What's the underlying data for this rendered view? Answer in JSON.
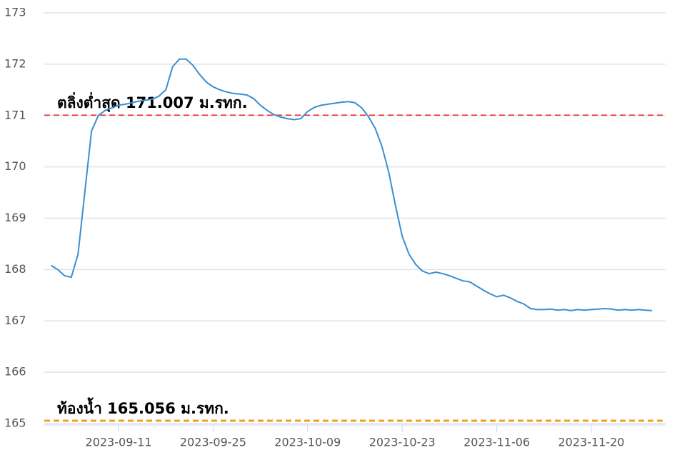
{
  "chart_data": {
    "type": "line",
    "x": [
      "2023-09-01",
      "2023-09-02",
      "2023-09-03",
      "2023-09-04",
      "2023-09-05",
      "2023-09-06",
      "2023-09-07",
      "2023-09-08",
      "2023-09-09",
      "2023-09-10",
      "2023-09-11",
      "2023-09-12",
      "2023-09-13",
      "2023-09-14",
      "2023-09-15",
      "2023-09-16",
      "2023-09-17",
      "2023-09-18",
      "2023-09-19",
      "2023-09-20",
      "2023-09-21",
      "2023-09-22",
      "2023-09-23",
      "2023-09-24",
      "2023-09-25",
      "2023-09-26",
      "2023-09-27",
      "2023-09-28",
      "2023-09-29",
      "2023-09-30",
      "2023-10-01",
      "2023-10-02",
      "2023-10-03",
      "2023-10-04",
      "2023-10-05",
      "2023-10-06",
      "2023-10-07",
      "2023-10-08",
      "2023-10-09",
      "2023-10-10",
      "2023-10-11",
      "2023-10-12",
      "2023-10-13",
      "2023-10-14",
      "2023-10-15",
      "2023-10-16",
      "2023-10-17",
      "2023-10-18",
      "2023-10-19",
      "2023-10-20",
      "2023-10-21",
      "2023-10-22",
      "2023-10-23",
      "2023-10-24",
      "2023-10-25",
      "2023-10-26",
      "2023-10-27",
      "2023-10-28",
      "2023-10-29",
      "2023-10-30",
      "2023-10-31",
      "2023-11-01",
      "2023-11-02",
      "2023-11-03",
      "2023-11-04",
      "2023-11-05",
      "2023-11-06",
      "2023-11-07",
      "2023-11-08",
      "2023-11-09",
      "2023-11-10",
      "2023-11-11",
      "2023-11-12",
      "2023-11-13",
      "2023-11-14",
      "2023-11-15",
      "2023-11-16",
      "2023-11-17",
      "2023-11-18",
      "2023-11-19",
      "2023-11-20",
      "2023-11-21",
      "2023-11-22",
      "2023-11-23",
      "2023-11-24",
      "2023-11-25",
      "2023-11-26",
      "2023-11-27",
      "2023-11-28",
      "2023-11-29"
    ],
    "values": [
      168.08,
      168.0,
      167.88,
      167.85,
      168.3,
      169.5,
      170.7,
      171.0,
      171.1,
      171.15,
      171.2,
      171.22,
      171.25,
      171.28,
      171.3,
      171.32,
      171.38,
      171.5,
      171.95,
      172.1,
      172.1,
      171.98,
      171.8,
      171.65,
      171.56,
      171.5,
      171.46,
      171.43,
      171.42,
      171.4,
      171.33,
      171.2,
      171.1,
      171.02,
      170.97,
      170.94,
      170.92,
      170.94,
      171.08,
      171.16,
      171.2,
      171.22,
      171.24,
      171.26,
      171.27,
      171.25,
      171.15,
      170.98,
      170.75,
      170.4,
      169.9,
      169.25,
      168.65,
      168.3,
      168.1,
      167.97,
      167.92,
      167.95,
      167.92,
      167.88,
      167.83,
      167.78,
      167.76,
      167.68,
      167.6,
      167.53,
      167.47,
      167.5,
      167.45,
      167.38,
      167.33,
      167.24,
      167.22,
      167.22,
      167.23,
      167.21,
      167.22,
      167.2,
      167.22,
      167.21,
      167.22,
      167.23,
      167.24,
      167.23,
      167.21,
      167.22,
      167.21,
      167.22,
      167.21,
      167.2
    ],
    "color": "#3a8fd0",
    "xlim": [
      "2023-08-31",
      "2023-12-01"
    ],
    "xticks": [
      "2023-09-11",
      "2023-09-25",
      "2023-10-09",
      "2023-10-23",
      "2023-11-06",
      "2023-11-20"
    ],
    "ylim": [
      165,
      173
    ],
    "yticks": [
      165,
      166,
      167,
      168,
      169,
      170,
      171,
      172,
      173
    ],
    "grid": true,
    "reference_lines": [
      {
        "label": "ตลิ่งต่ำสุด 171.007 ม.รทก.",
        "value": 171.007,
        "color": "#e8383d"
      },
      {
        "label": "ท้องน้ำ 165.056 ม.รทก.",
        "value": 165.056,
        "color": "#f0a020"
      }
    ]
  }
}
